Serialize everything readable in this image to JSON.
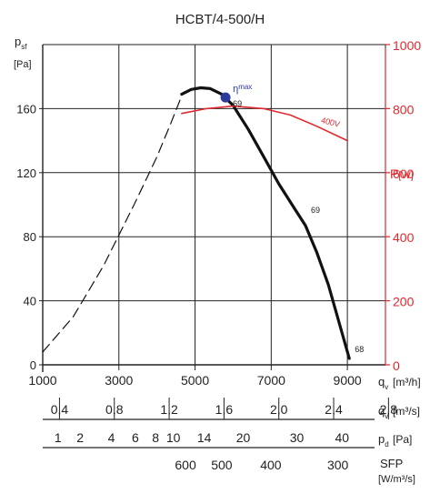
{
  "chart_data": {
    "type": "line",
    "title": "HCBT/4-500/H",
    "y_left": {
      "label": "p",
      "label_sub": "sf",
      "unit": "[Pa]",
      "range": [
        0,
        200
      ],
      "ticks": [
        {
          "v": 0,
          "t": "0"
        },
        {
          "v": 40,
          "t": "40"
        },
        {
          "v": 80,
          "t": "80"
        },
        {
          "v": 120,
          "t": "120"
        },
        {
          "v": 160,
          "t": "160"
        }
      ],
      "grid_lines": [
        0,
        40,
        80,
        120,
        160,
        200
      ]
    },
    "y_right": {
      "label": "P",
      "unit": "[W]",
      "range": [
        0,
        1000
      ],
      "ticks": [
        {
          "v": 0,
          "t": "0"
        },
        {
          "v": 200,
          "t": "200"
        },
        {
          "v": 400,
          "t": "400"
        },
        {
          "v": 600,
          "t": "600"
        },
        {
          "v": 800,
          "t": "800"
        },
        {
          "v": 1000,
          "t": "1000"
        }
      ],
      "color": "#e0282d"
    },
    "x_axis": {
      "label": "q",
      "label_sub": "v",
      "unit": "[m³/h]",
      "range": [
        1000,
        10000
      ],
      "ticks": [
        {
          "v": 1000,
          "t": "1000"
        },
        {
          "v": 3000,
          "t": "3000"
        },
        {
          "v": 5000,
          "t": "5000"
        },
        {
          "v": 7000,
          "t": "7000"
        },
        {
          "v": 9000,
          "t": "9000"
        }
      ],
      "grid_lines": [
        1000,
        3000,
        5000,
        7000,
        9000
      ]
    },
    "secondary_scales": [
      {
        "key": "qv_m3s",
        "label": "q",
        "label_sub": "v",
        "unit": "[m³/s]",
        "ticks": [
          {
            "v": 0.4,
            "t": "0,4"
          },
          {
            "v": 0.8,
            "t": "0,8"
          },
          {
            "v": 1.2,
            "t": "1,2"
          },
          {
            "v": 1.6,
            "t": "1,6"
          },
          {
            "v": 2.0,
            "t": "2,0"
          },
          {
            "v": 2.4,
            "t": "2,4"
          },
          {
            "v": 2.8,
            "t": "2,8"
          }
        ]
      },
      {
        "key": "pd",
        "label": "p",
        "label_sub": "d",
        "unit": "[Pa]",
        "ticks": [
          {
            "v": 1,
            "t": "1"
          },
          {
            "v": 2,
            "t": "2"
          },
          {
            "v": 4,
            "t": "4"
          },
          {
            "v": 6,
            "t": "6"
          },
          {
            "v": 8,
            "t": "8"
          },
          {
            "v": 10,
            "t": "10"
          },
          {
            "v": 14,
            "t": "14"
          },
          {
            "v": 20,
            "t": "20"
          },
          {
            "v": 30,
            "t": "30"
          },
          {
            "v": 40,
            "t": "40"
          }
        ]
      },
      {
        "key": "sfp",
        "label": "SFP",
        "unit": "[W/m³/s]",
        "ticks": [
          {
            "v": 600,
            "t": "600"
          },
          {
            "v": 500,
            "t": "500"
          },
          {
            "v": 400,
            "t": "400"
          },
          {
            "v": 300,
            "t": "300"
          }
        ]
      }
    ],
    "series": [
      {
        "style": "dashed",
        "color": "#111111",
        "x": [
          1000,
          1800,
          2600,
          3400,
          4000,
          4350,
          4650
        ],
        "y": [
          8,
          30,
          62,
          100,
          130,
          150,
          168
        ]
      },
      {
        "style": "solid",
        "color": "#111111",
        "x": [
          4650,
          4900,
          5150,
          5400,
          5700,
          6000,
          6400,
          6800,
          7200,
          7600,
          7900,
          8200,
          8500,
          8800,
          9050
        ],
        "y": [
          169,
          172,
          173,
          172.5,
          169,
          162,
          147,
          130,
          113,
          98,
          87,
          70,
          50,
          25,
          4
        ]
      },
      {
        "name": "400V",
        "style": "solid",
        "color": "#e0282d",
        "axis": "right",
        "x": [
          4650,
          5300,
          6000,
          6800,
          7500,
          8200,
          9000
        ],
        "y": [
          785,
          800,
          808,
          800,
          780,
          745,
          700
        ]
      }
    ],
    "annotations": {
      "eta_max": {
        "label": "η",
        "label_sub": "max",
        "x": 5800,
        "y": 167,
        "color": "#2b3a9c"
      },
      "efficiency_labels": [
        {
          "text": "69",
          "x": 5800,
          "y": 167
        },
        {
          "text": "69",
          "x": 7900,
          "y": 87
        },
        {
          "text": "68",
          "x": 9050,
          "y": 4
        }
      ]
    }
  }
}
